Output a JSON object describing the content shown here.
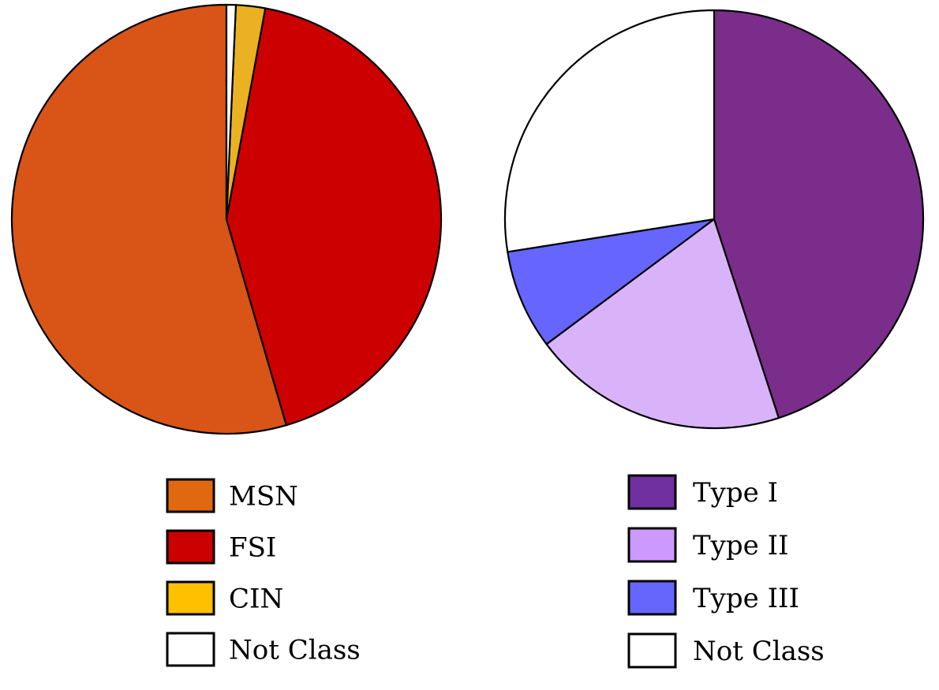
{
  "chart_data": [
    {
      "type": "pie",
      "slices": [
        {
          "label": "MSN",
          "value": 54.5,
          "color": "#d95417",
          "legend_color": "#e06810"
        },
        {
          "label": "FSI",
          "value": 42.6,
          "color": "#cc0000",
          "legend_color": "#cc0000"
        },
        {
          "label": "CIN",
          "value": 2.2,
          "color": "#eab122",
          "legend_color": "#ffc000"
        },
        {
          "label": "Not Class",
          "value": 0.7,
          "color": "#ffffff",
          "legend_color": "#ffffff"
        }
      ]
    },
    {
      "type": "pie",
      "slices": [
        {
          "label": "Type I",
          "value": 45.0,
          "color": "#7b2d8b",
          "legend_color": "#7030a0"
        },
        {
          "label": "Type II",
          "value": 19.8,
          "color": "#d9b3fa",
          "legend_color": "#cc99ff"
        },
        {
          "label": "Type III",
          "value": 7.7,
          "color": "#6666ff",
          "legend_color": "#6666ff"
        },
        {
          "label": "Not Class",
          "value": 27.5,
          "color": "#ffffff",
          "legend_color": "#ffffff"
        }
      ]
    }
  ]
}
